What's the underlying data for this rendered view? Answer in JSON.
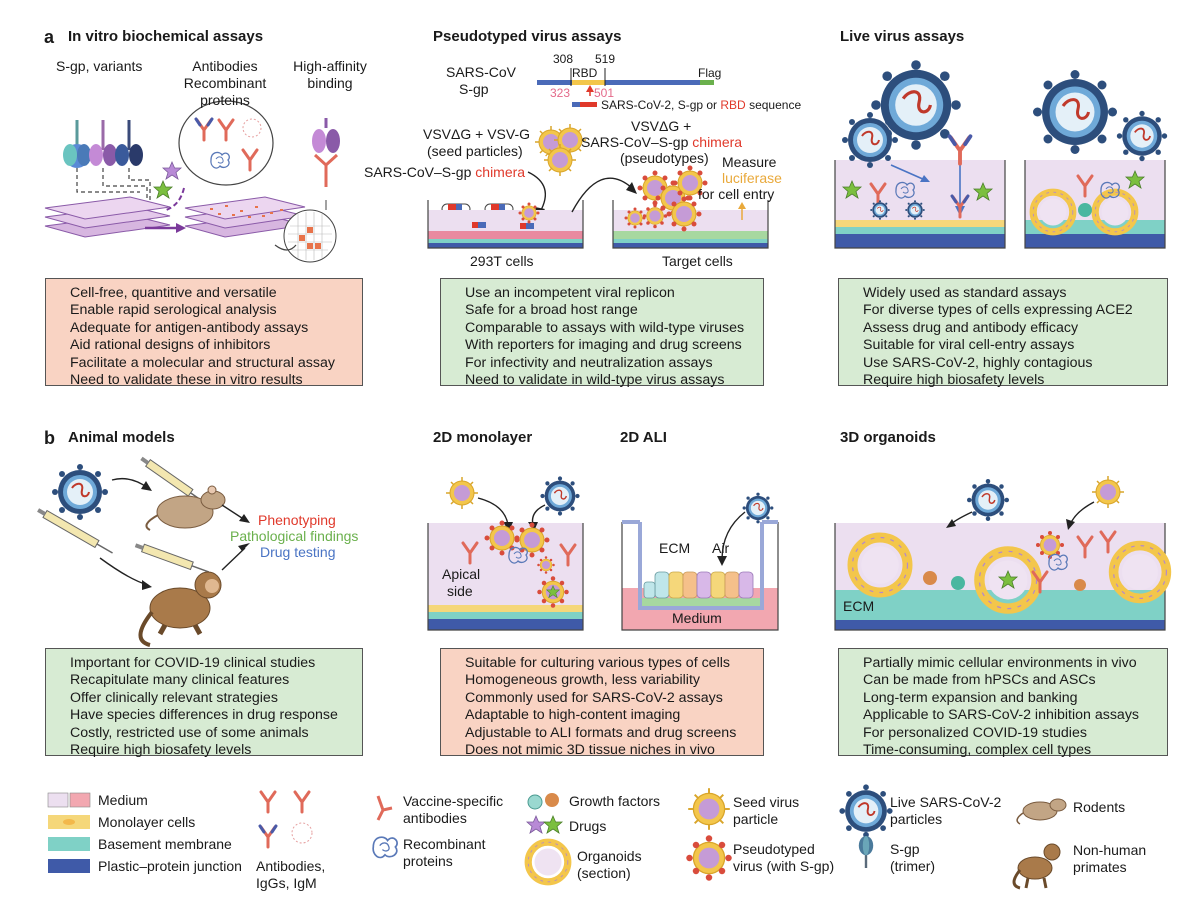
{
  "panel_a": {
    "letter": "a",
    "biochem": {
      "title": "In vitro biochemical assays",
      "label_sgp": "S-gp, variants",
      "label_antibodies": "Antibodies",
      "label_recombinant": "Recombinant",
      "label_proteins": "proteins",
      "label_high_affinity": "High-affinity",
      "label_binding": "binding",
      "bullets": [
        "Cell-free, quantitive and versatile",
        "Enable rapid serological analysis",
        "Adequate for antigen-antibody assays",
        "Aid rational designs of inhibitors",
        "Facilitate a molecular and structural assay",
        "Need to validate these in vitro results"
      ]
    },
    "pseudo": {
      "title": "Pseudotyped virus assays",
      "sars_cov": "SARS-CoV",
      "sgp": "S-gp",
      "n308": "308",
      "n519": "519",
      "rbd": "RBD",
      "flag": "Flag",
      "n323": "323",
      "n501": "501",
      "seq_label_a": "SARS-CoV-2, S-gp or ",
      "seq_label_b": "RBD",
      "seq_label_c": " sequence",
      "vsv_vsvg": "VSVΔG + VSV-G",
      "seed_particles": "(seed particles)",
      "vsv_plus": "VSVΔG +",
      "sars_sgp": "SARS-CoV–S-gp ",
      "chimera": "chimera",
      "pseudotypes": "(pseudotypes)",
      "chimera_label_a": "SARS-CoV–S-gp ",
      "measure": "Measure",
      "luciferase": "luciferase",
      "for_cell_entry": "for cell entry",
      "cells_293t": "293T cells",
      "target_cells": "Target cells",
      "bullets": [
        "Use an incompetent viral replicon",
        "Safe for a broad host range",
        "Comparable to assays with wild-type viruses",
        "With reporters for imaging and drug screens",
        "For infectivity and neutralization assays",
        "Need to validate in wild-type virus assays"
      ]
    },
    "live": {
      "title": "Live virus assays",
      "bullets": [
        "Widely used as standard assays",
        "For diverse types of cells expressing ACE2",
        "Assess drug and antibody efficacy",
        "Suitable for viral cell-entry assays",
        "Use SARS-CoV-2, highly contagious",
        "Require high biosafety levels"
      ]
    }
  },
  "panel_b": {
    "letter": "b",
    "animal": {
      "title": "Animal models",
      "phenotyping": "Phenotyping",
      "pathological": "Pathological findings",
      "drug_testing": "Drug testing",
      "bullets": [
        "Important for COVID-19 clinical studies",
        "Recapitulate many clinical features",
        "Offer clinically relevant strategies",
        "Have species differences in drug response",
        "Costly, restricted use of some animals",
        "Require high biosafety levels"
      ]
    },
    "mono": {
      "title": "2D monolayer",
      "apical": "Apical",
      "side": "side",
      "bullets": [
        "Suitable for culturing various types of cells",
        "Homogeneous growth, less variability",
        "Commonly used for SARS-CoV-2 assays",
        "Adaptable to high-content imaging",
        "Adjustable to ALI formats and drug screens",
        "Does not mimic 3D tissue niches in vivo"
      ]
    },
    "ali": {
      "title": "2D ALI",
      "ecm": "ECM",
      "air": "Air",
      "medium": "Medium"
    },
    "organoid": {
      "title": "3D organoids",
      "ecm": "ECM",
      "bullets": [
        "Partially mimic cellular environments in vivo",
        "Can be made from hPSCs and ASCs",
        "Long-term expansion and banking",
        "Applicable to SARS-CoV-2 inhibition assays",
        "For personalized COVID-19 studies",
        "Time-consuming, complex cell types"
      ]
    }
  },
  "legend": {
    "medium": "Medium",
    "monolayer": "Monolayer cells",
    "basement": "Basement membrane",
    "plastic": "Plastic–protein junction",
    "antibodies_a": "Antibodies,",
    "antibodies_b": "IgGs, IgM",
    "vaccine_a": "Vaccine-specific",
    "vaccine_b": "antibodies",
    "recombinant_a": "Recombinant",
    "recombinant_b": "proteins",
    "growth": "Growth factors",
    "drugs": "Drugs",
    "organoids_a": "Organoids",
    "organoids_b": "(section)",
    "seed_a": "Seed virus",
    "seed_b": "particle",
    "pseudo_a": "Pseudotyped",
    "pseudo_b": "virus (with S-gp)",
    "live_a": "Live SARS-CoV-2",
    "live_b": "particles",
    "sgp_a": "S-gp",
    "sgp_b": "(trimer)",
    "rodents": "Rodents",
    "nhp_a": "Non-human",
    "nhp_b": "primates"
  },
  "colors": {
    "salmon_box": "#f9d3c3",
    "green_box": "#d7ebd3",
    "medium": "#ecdff0",
    "medium_pink": "#f2a7b0",
    "monolayer": "#f5d77a",
    "basement": "#7fd1c6",
    "plastic": "#3f5aa8",
    "red_text": "#e0392b",
    "green_text": "#6ab04c",
    "blue_text": "#4a74c4",
    "orange_text": "#e9a93b"
  }
}
